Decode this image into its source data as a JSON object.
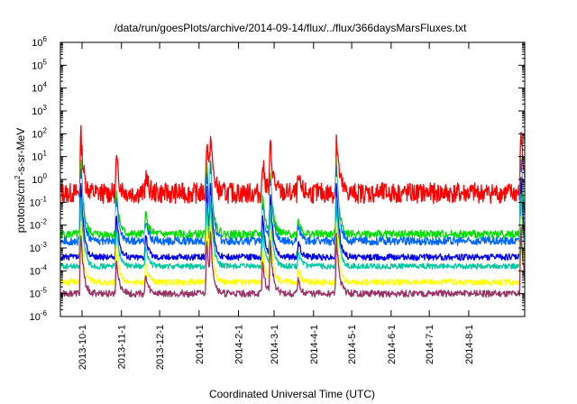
{
  "chart_data": {
    "type": "line",
    "title": "/data/run/goesPlots/archive/2014-09-14/flux/../flux/366daysMarsFluxes.txt",
    "xlabel": "Coordinated Universal Time (UTC)",
    "ylabel_main": "protons/cm",
    "ylabel_sup": "2",
    "ylabel_rest": "-s-sr-MeV",
    "yscale": "log",
    "ylim_exp": [
      -6,
      6
    ],
    "y_tick_base": "10",
    "y_tick_exponents": [
      "-6",
      "-5",
      "-4",
      "-3",
      "-2",
      "-1",
      "0",
      "1",
      "2",
      "3",
      "4",
      "5",
      "6"
    ],
    "xlim": [
      "2013-09-14",
      "2014-09-14"
    ],
    "x_ticks": [
      {
        "date": "2013-10-01",
        "label": "2013-10-1"
      },
      {
        "date": "2013-11-01",
        "label": "2013-11-1"
      },
      {
        "date": "2013-12-01",
        "label": "2013-12-1"
      },
      {
        "date": "2014-01-01",
        "label": "2014-1-1"
      },
      {
        "date": "2014-02-01",
        "label": "2014-2-1"
      },
      {
        "date": "2014-03-01",
        "label": "2014-3-1"
      },
      {
        "date": "2014-04-01",
        "label": "2014-4-1"
      },
      {
        "date": "2014-05-01",
        "label": "2014-5-1"
      },
      {
        "date": "2014-06-01",
        "label": "2014-6-1"
      },
      {
        "date": "2014-07-01",
        "label": "2014-7-1"
      },
      {
        "date": "2014-08-01",
        "label": "2014-8-1"
      }
    ],
    "events": [
      {
        "date": "2013-09-30",
        "amp": 2.8
      },
      {
        "date": "2013-10-28",
        "amp": 1.6
      },
      {
        "date": "2013-11-20",
        "amp": 0.8
      },
      {
        "date": "2014-01-07",
        "amp": 2.6
      },
      {
        "date": "2014-01-10",
        "amp": 2.0
      },
      {
        "date": "2014-02-20",
        "amp": 1.4
      },
      {
        "date": "2014-02-26",
        "amp": 2.2
      },
      {
        "date": "2014-03-20",
        "amp": 0.6
      },
      {
        "date": "2014-04-19",
        "amp": 2.6
      },
      {
        "date": "2014-09-11",
        "amp": 3.0
      }
    ],
    "series": [
      {
        "color": "#ff0000",
        "baseline_log": -0.6,
        "noise": 0.45,
        "event_scale": 1.0
      },
      {
        "color": "#00dd00",
        "baseline_log": -2.4,
        "noise": 0.18,
        "event_scale": 1.25
      },
      {
        "color": "#0066ff",
        "baseline_log": -2.7,
        "noise": 0.18,
        "event_scale": 1.25
      },
      {
        "color": "#ffffff",
        "baseline_log": -3.0,
        "noise": 0.1,
        "event_scale": 1.2
      },
      {
        "color": "#0000ee",
        "baseline_log": -3.4,
        "noise": 0.14,
        "event_scale": 1.25
      },
      {
        "color": "#00c8a0",
        "baseline_log": -3.8,
        "noise": 0.12,
        "event_scale": 1.15
      },
      {
        "color": "#ffff00",
        "baseline_log": -4.5,
        "noise": 0.14,
        "event_scale": 1.05
      },
      {
        "color": "#993366",
        "baseline_log": -5.0,
        "noise": 0.15,
        "event_scale": 1.0
      }
    ]
  }
}
